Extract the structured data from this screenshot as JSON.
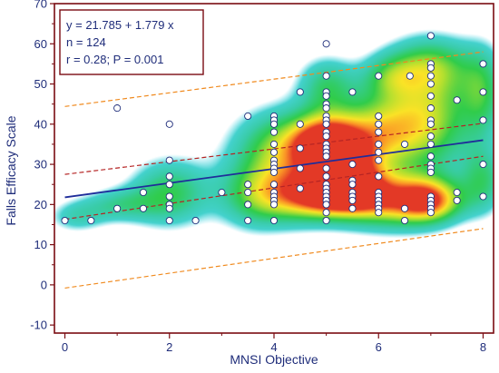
{
  "chart_data": {
    "type": "scatter",
    "title": "",
    "xlabel": "MNSI Objective",
    "ylabel": "Falls Efficacy Scale",
    "xlim": [
      -0.2,
      8.2
    ],
    "ylim": [
      -12,
      70
    ],
    "xticks": [
      0,
      2,
      4,
      6,
      8
    ],
    "yticks": [
      -10,
      0,
      10,
      20,
      30,
      40,
      50,
      60,
      70
    ],
    "grid": false,
    "annotations": {
      "equation": "y = 21.785 + 1.779 x",
      "n": "n = 124",
      "stats": "r = 0.28; P = 0.001"
    },
    "regression": {
      "intercept": 21.785,
      "slope": 1.779
    },
    "confidence_band": {
      "lower": [
        [
          0,
          16.3
        ],
        [
          8,
          32.0
        ]
      ],
      "upper": [
        [
          0,
          27.5
        ],
        [
          8,
          40.2
        ]
      ]
    },
    "prediction_band": {
      "lower": [
        [
          0,
          -0.8
        ],
        [
          8,
          14.0
        ]
      ],
      "upper": [
        [
          0,
          44.4
        ],
        [
          8,
          58.0
        ]
      ]
    },
    "colors": {
      "points_edge": "#1f2d7a",
      "regression": "#1f2d9a",
      "confidence": "#b52424",
      "prediction": "#f08a1e",
      "frame": "#7a0c12",
      "text": "#1f2d7a"
    },
    "density_blobs": [
      [
        5.0,
        35.0,
        0.45,
        5.0,
        1.0
      ],
      [
        5.2,
        23.0,
        0.55,
        4.0,
        0.9
      ],
      [
        7.0,
        21.0,
        0.45,
        4.0,
        0.85
      ],
      [
        4.2,
        34.0,
        0.7,
        7.0,
        0.7
      ],
      [
        6.0,
        38.0,
        0.6,
        7.0,
        0.7
      ],
      [
        6.2,
        21.0,
        0.6,
        5.0,
        0.75
      ],
      [
        7.0,
        42.0,
        0.6,
        10.0,
        0.65
      ],
      [
        7.0,
        55.0,
        0.6,
        5.0,
        0.45
      ],
      [
        5.0,
        50.0,
        0.4,
        5.0,
        0.45
      ],
      [
        4.5,
        22.0,
        0.6,
        5.0,
        0.6
      ],
      [
        3.6,
        22.0,
        0.5,
        6.0,
        0.45
      ],
      [
        2.0,
        23.0,
        0.55,
        6.0,
        0.55
      ],
      [
        1.0,
        20.0,
        0.5,
        3.0,
        0.35
      ],
      [
        0.2,
        17.0,
        0.4,
        3.0,
        0.3
      ],
      [
        8.0,
        48.0,
        0.3,
        8.0,
        0.45
      ],
      [
        8.0,
        26.0,
        0.3,
        6.0,
        0.45
      ],
      [
        6.2,
        52.0,
        0.4,
        4.0,
        0.35
      ],
      [
        5.5,
        28.0,
        0.4,
        6.0,
        0.55
      ]
    ],
    "points": [
      [
        0,
        16
      ],
      [
        0.5,
        16
      ],
      [
        1,
        44
      ],
      [
        1,
        19
      ],
      [
        1.5,
        19
      ],
      [
        1.5,
        23
      ],
      [
        2,
        40
      ],
      [
        2,
        31
      ],
      [
        2,
        27
      ],
      [
        2,
        25
      ],
      [
        2,
        22
      ],
      [
        2,
        20
      ],
      [
        2,
        19
      ],
      [
        2,
        16
      ],
      [
        2.5,
        16
      ],
      [
        3,
        23
      ],
      [
        3.5,
        42
      ],
      [
        3.5,
        25
      ],
      [
        3.5,
        23
      ],
      [
        3.5,
        20
      ],
      [
        3.5,
        16
      ],
      [
        4,
        42
      ],
      [
        4,
        41
      ],
      [
        4,
        40
      ],
      [
        4,
        38
      ],
      [
        4,
        35
      ],
      [
        4,
        33
      ],
      [
        4,
        31
      ],
      [
        4,
        30
      ],
      [
        4,
        29
      ],
      [
        4,
        28
      ],
      [
        4,
        25
      ],
      [
        4,
        23
      ],
      [
        4,
        22
      ],
      [
        4,
        21
      ],
      [
        4,
        20
      ],
      [
        4,
        16
      ],
      [
        4.5,
        48
      ],
      [
        4.5,
        40
      ],
      [
        4.5,
        34
      ],
      [
        4.5,
        29
      ],
      [
        4.5,
        24
      ],
      [
        5,
        60
      ],
      [
        5,
        52
      ],
      [
        5,
        48
      ],
      [
        5,
        47
      ],
      [
        5,
        45
      ],
      [
        5,
        44
      ],
      [
        5,
        42
      ],
      [
        5,
        41
      ],
      [
        5,
        40
      ],
      [
        5,
        38
      ],
      [
        5,
        37
      ],
      [
        5,
        35
      ],
      [
        5,
        34
      ],
      [
        5,
        33
      ],
      [
        5,
        32
      ],
      [
        5,
        29
      ],
      [
        5,
        27
      ],
      [
        5,
        25
      ],
      [
        5,
        24
      ],
      [
        5,
        23
      ],
      [
        5,
        22
      ],
      [
        5,
        21
      ],
      [
        5,
        20
      ],
      [
        5,
        18
      ],
      [
        5,
        16
      ],
      [
        5.5,
        48
      ],
      [
        5.5,
        30
      ],
      [
        5.5,
        26
      ],
      [
        5.5,
        25
      ],
      [
        5.5,
        23
      ],
      [
        5.5,
        22
      ],
      [
        5.5,
        21
      ],
      [
        5.5,
        19
      ],
      [
        6,
        52
      ],
      [
        6,
        42
      ],
      [
        6,
        40
      ],
      [
        6,
        38
      ],
      [
        6,
        35
      ],
      [
        6,
        33
      ],
      [
        6,
        31
      ],
      [
        6,
        27
      ],
      [
        6,
        23
      ],
      [
        6,
        22
      ],
      [
        6,
        21
      ],
      [
        6,
        20
      ],
      [
        6,
        19
      ],
      [
        6,
        18
      ],
      [
        6.5,
        35
      ],
      [
        6.5,
        19
      ],
      [
        6.5,
        16
      ],
      [
        6.6,
        52
      ],
      [
        7,
        62
      ],
      [
        7,
        55
      ],
      [
        7,
        54
      ],
      [
        7,
        52
      ],
      [
        7,
        50
      ],
      [
        7,
        47
      ],
      [
        7,
        44
      ],
      [
        7,
        41
      ],
      [
        7,
        40
      ],
      [
        7,
        37
      ],
      [
        7,
        35
      ],
      [
        7,
        32
      ],
      [
        7,
        30
      ],
      [
        7,
        29
      ],
      [
        7,
        28
      ],
      [
        7,
        22
      ],
      [
        7,
        21
      ],
      [
        7,
        20
      ],
      [
        7,
        19
      ],
      [
        7,
        18
      ],
      [
        7.5,
        46
      ],
      [
        7.5,
        23
      ],
      [
        7.5,
        21
      ],
      [
        8,
        55
      ],
      [
        8,
        48
      ],
      [
        8,
        41
      ],
      [
        8,
        30
      ],
      [
        8,
        22
      ]
    ]
  }
}
